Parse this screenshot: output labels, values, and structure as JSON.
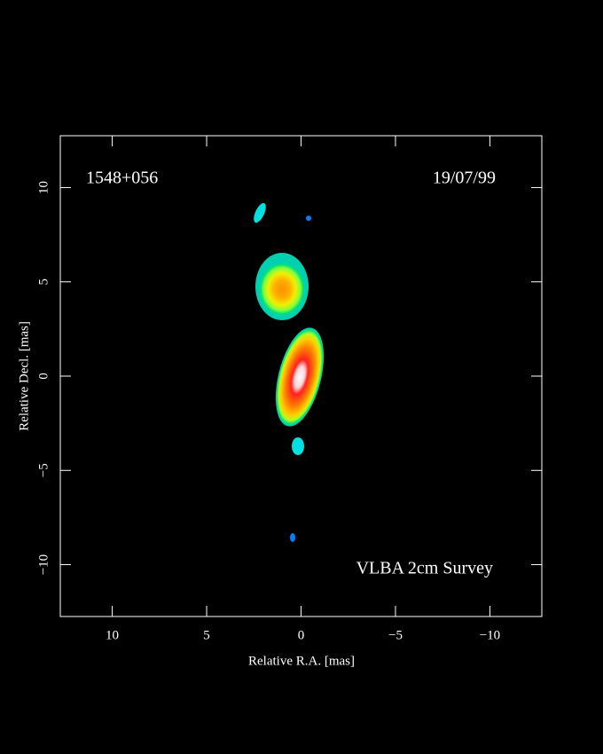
{
  "chart_data": {
    "type": "image",
    "title": "1548+056",
    "date": "19/07/99",
    "annotation": "VLBA 2cm Survey",
    "xlabel": "Relative R.A. [mas]",
    "ylabel": "Relative Decl. [mas]",
    "xlim": [
      12.75,
      -12.75
    ],
    "ylim": [
      -12.75,
      12.75
    ],
    "xticks": [
      10,
      5,
      0,
      {
        "value": -5,
        "label": "−5"
      },
      {
        "value": -10,
        "label": "−10"
      }
    ],
    "yticks": [
      {
        "value": -10,
        "label": "−10"
      },
      {
        "value": -5,
        "label": "−5"
      },
      0,
      5,
      10
    ]
  }
}
